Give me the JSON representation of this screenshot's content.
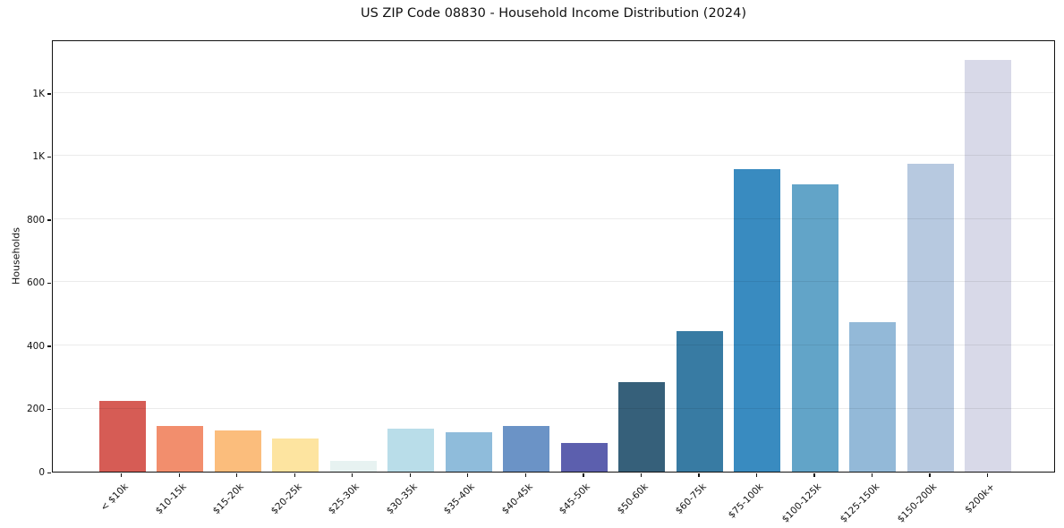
{
  "chart_data": {
    "type": "bar",
    "title": "US ZIP Code 08830 - Household Income Distribution (2024)",
    "xlabel": "",
    "ylabel": "Households",
    "categories": [
      "< $10k",
      "$10-15k",
      "$15-20k",
      "$20-25k",
      "$25-30k",
      "$30-35k",
      "$35-40k",
      "$40-45k",
      "$45-50k",
      "$50-60k",
      "$60-75k",
      "$75-100k",
      "$100-125k",
      "$125-150k",
      "$150-200k",
      "$200k+"
    ],
    "values": [
      225,
      145,
      130,
      105,
      35,
      135,
      125,
      145,
      90,
      285,
      445,
      960,
      910,
      475,
      975,
      1305
    ],
    "bar_colors": [
      "#d65c55",
      "#f28e6d",
      "#fbbd7c",
      "#fde4a0",
      "#e7f2f1",
      "#b9dde9",
      "#8fbcdb",
      "#6b93c6",
      "#5c5fae",
      "#36607a",
      "#387ba3",
      "#398bc0",
      "#62a4c8",
      "#93b9d8",
      "#b7c9e0",
      "#d8d9e8"
    ],
    "ylim": [
      0,
      1370
    ],
    "yticks": {
      "values": [
        0,
        200,
        400,
        600,
        800,
        1000,
        1200
      ],
      "labels": [
        "0",
        "200",
        "400",
        "600",
        "800",
        "1K",
        "1K"
      ]
    },
    "grid": "horizontal",
    "legend": "none",
    "background": "#ffffff",
    "spine_color": "#111111"
  }
}
